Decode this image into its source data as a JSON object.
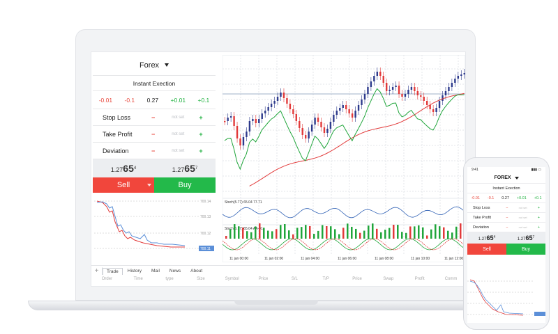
{
  "panel": {
    "title": "Forex",
    "mode": "Instant Exection",
    "steps": {
      "m2": "-0.01",
      "m1": "-0.1",
      "value": "0.27",
      "p1": "+0.01",
      "p2": "+0.1"
    },
    "fields": [
      {
        "label": "Stop Loss",
        "minus": "−",
        "value": "not set",
        "plus": "+"
      },
      {
        "label": "Take Profit",
        "minus": "−",
        "value": "not set",
        "plus": "+"
      },
      {
        "label": "Deviation",
        "minus": "−",
        "value": "not set",
        "plus": "+"
      }
    ],
    "bid": {
      "prefix": "1.27",
      "big": "65",
      "sup": "4"
    },
    "ask": {
      "prefix": "1.27",
      "big": "65",
      "sup": "7"
    },
    "sell_label": "Sell",
    "buy_label": "Buy"
  },
  "mini_chart": {
    "levels": [
      "700.14",
      "700.13",
      "700.12"
    ],
    "current_price": "700.11"
  },
  "main_chart": {
    "stoch1_label": "Stoch(5.77) 65.04 77.71",
    "stoch2_label": "Stoch(5.77) 65.04 AA-01",
    "time_labels": [
      "11 jan 00:00",
      "11 jan 02:00",
      "11 jan 04:00",
      "11 jan 06:00",
      "11 jan 08:00",
      "11 jan 10:00",
      "11 jan 12:00"
    ]
  },
  "tabs": {
    "plus": "+",
    "items": [
      "Trade",
      "History",
      "Mail",
      "News",
      "About"
    ]
  },
  "columns": [
    "Order",
    "Time",
    "type",
    "Size",
    "Symbol",
    "Price",
    "S/L",
    "T/P",
    "Price",
    "Swap",
    "Profit",
    "Comm"
  ],
  "phone": {
    "time": "9:41",
    "title": "FOREX",
    "mode": "Instant Exection",
    "steps": {
      "m2": "-0.01",
      "m1": "-0.1",
      "value": "0.27",
      "p1": "+0.01",
      "p2": "+0.1"
    },
    "fields": [
      {
        "label": "Stop Loss",
        "minus": "−",
        "value": "not set",
        "plus": "+"
      },
      {
        "label": "Take Profit",
        "minus": "−",
        "value": "not set",
        "plus": "+"
      },
      {
        "label": "Deviation",
        "minus": "−",
        "value": "not set",
        "plus": "+"
      }
    ],
    "bid": {
      "prefix": "1.27",
      "big": "65",
      "sup": "4"
    },
    "ask": {
      "prefix": "1.27",
      "big": "65",
      "sup": "7"
    },
    "sell_label": "Sell",
    "buy_label": "Buy"
  },
  "colors": {
    "sell": "#f1463c",
    "buy": "#23b94a",
    "bull": "#2d3a8c",
    "bear": "#e23a3a",
    "ma": "#1fa53a"
  }
}
